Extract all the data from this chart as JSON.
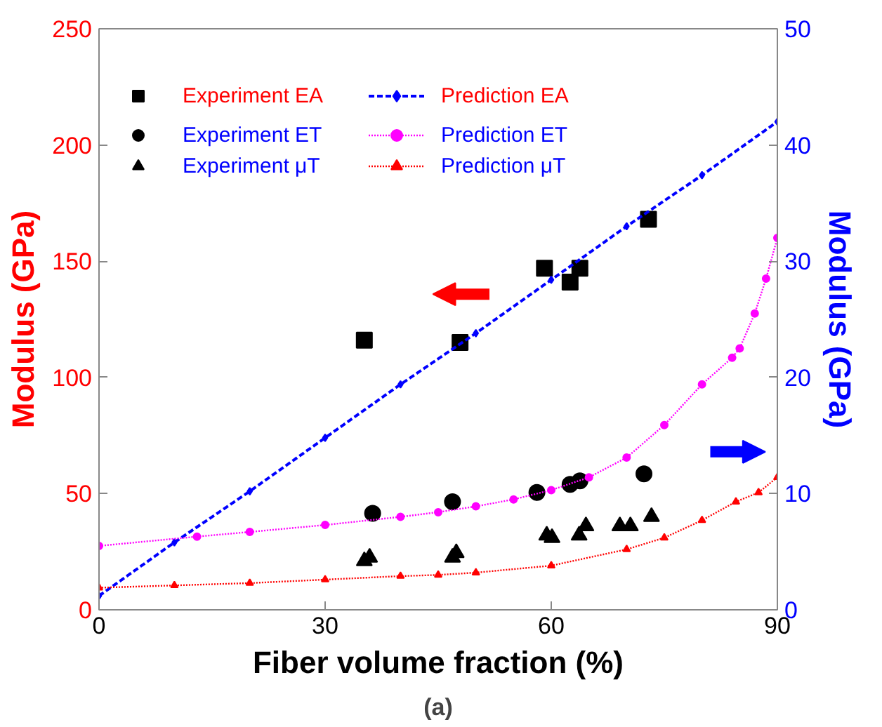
{
  "chart_data": {
    "type": "scatter",
    "xlabel": "Fiber volume fraction (%)",
    "ylabel": "Modulus (GPa)",
    "y2label": "Modulus (GPa)",
    "xlim": [
      0,
      90
    ],
    "xticks": [
      0,
      30,
      60,
      90
    ],
    "ylim": [
      0,
      250
    ],
    "yticks": [
      0,
      50,
      100,
      150,
      200,
      250
    ],
    "y2lim": [
      0,
      50
    ],
    "y2ticks": [
      0,
      10,
      20,
      30,
      40,
      50
    ],
    "grid": false,
    "legend": "top left",
    "series": [
      {
        "name": "Experiment EA",
        "marker": "square",
        "color": "#000000",
        "x": [
          35.2,
          47.9,
          59.1,
          62.5,
          63.8,
          72.9
        ],
        "values": [
          116,
          115,
          147,
          141,
          147,
          168
        ]
      },
      {
        "name": "Experiment ET",
        "marker": "circle",
        "color": "#000000",
        "axis": "y2",
        "x": [
          36.3,
          46.9,
          58.1,
          62.5,
          63.8,
          72.3
        ],
        "values": [
          8.3,
          9.3,
          10.1,
          10.8,
          11.1,
          11.7
        ]
      },
      {
        "name": "Experiment μT",
        "marker": "triangle",
        "color": "#000000",
        "axis": "y2",
        "x": [
          35.2,
          35.9,
          46.9,
          47.4,
          59.4,
          60.1,
          63.7,
          64.6,
          69.1,
          70.5,
          73.3
        ],
        "values": [
          4.2,
          4.5,
          4.5,
          4.9,
          6.4,
          6.2,
          6.4,
          7.2,
          7.2,
          7.2,
          8.0
        ]
      },
      {
        "name": "Prediction EA",
        "type": "line",
        "marker": "diamond",
        "line_style": "dashed",
        "color": "#0000ff",
        "x": [
          0,
          10,
          20,
          30,
          40,
          50,
          60,
          70,
          80,
          90
        ],
        "values": [
          6,
          29,
          51,
          74,
          97,
          119,
          142,
          165,
          187,
          210
        ]
      },
      {
        "name": "Prediction ET",
        "type": "line",
        "marker": "circle",
        "line_style": "dotted",
        "color": "#ff00ff",
        "axis": "y2",
        "x": [
          0,
          13,
          20,
          30,
          40,
          45,
          50,
          55,
          60,
          65,
          70,
          75,
          80,
          84,
          85,
          87,
          88.5,
          90
        ],
        "values": [
          5.5,
          6.3,
          6.7,
          7.3,
          8.0,
          8.4,
          8.9,
          9.5,
          10.3,
          11.4,
          13.1,
          15.9,
          19.4,
          21.7,
          22.5,
          25.5,
          28.5,
          32
        ]
      },
      {
        "name": "Prediction μT",
        "type": "line",
        "marker": "triangle",
        "line_style": "dotted",
        "color": "#ff0000",
        "axis": "y2",
        "x": [
          0,
          10,
          20,
          30,
          40,
          45,
          50,
          60,
          70,
          75,
          80,
          84.5,
          87.5,
          90
        ],
        "values": [
          1.9,
          2.1,
          2.3,
          2.6,
          2.9,
          3.0,
          3.2,
          3.8,
          5.2,
          6.2,
          7.7,
          9.3,
          10.1,
          11.4
        ]
      }
    ],
    "annotations": [
      "(a)"
    ]
  }
}
